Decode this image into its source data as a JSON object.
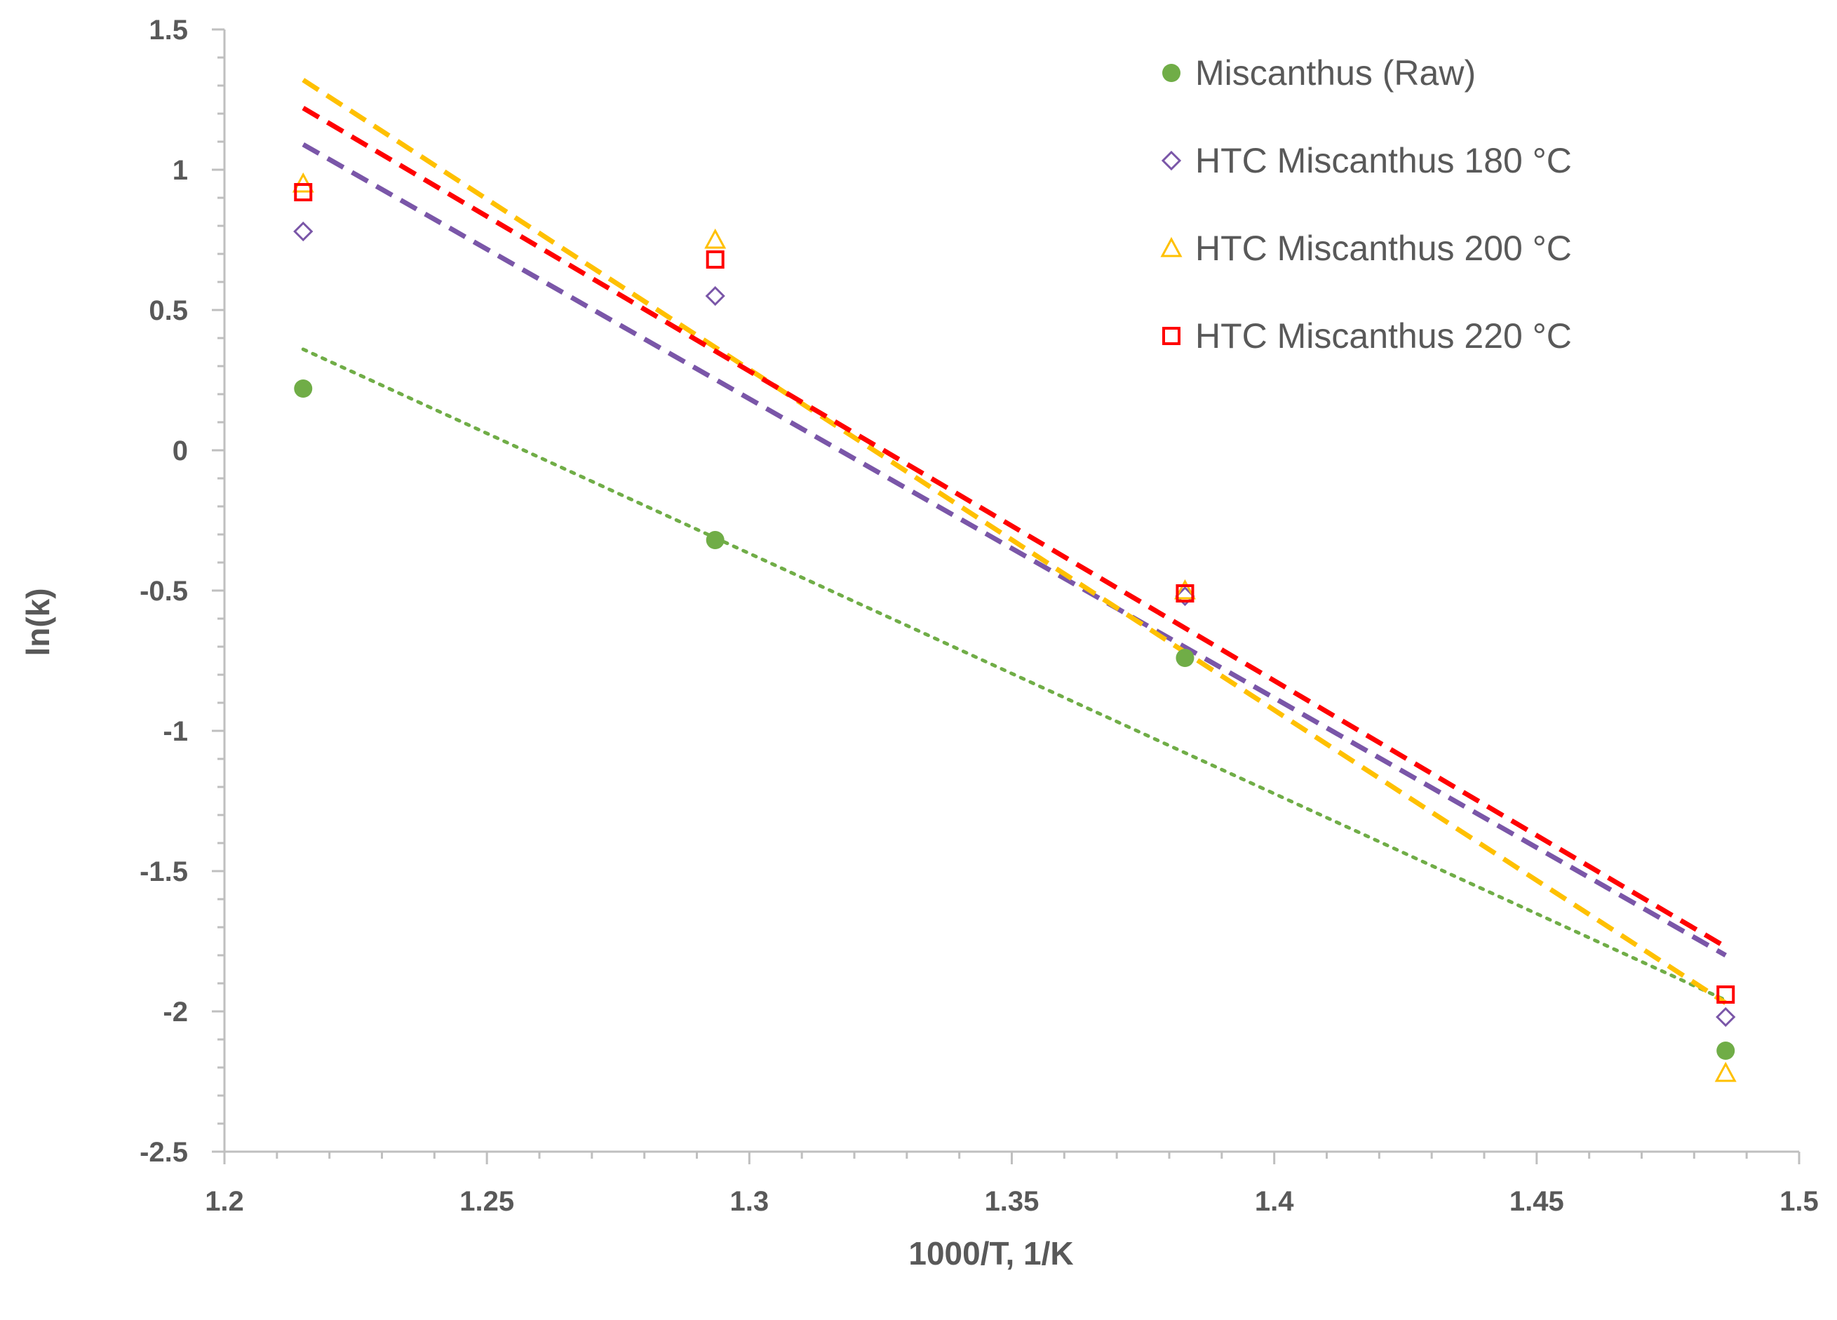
{
  "chart_data": {
    "type": "scatter",
    "title": "",
    "xlabel": "1000/T, 1/K",
    "ylabel": "ln(k)",
    "xlim": [
      1.2,
      1.5
    ],
    "ylim": [
      -2.5,
      1.5
    ],
    "xticks": [
      1.2,
      1.25,
      1.3,
      1.35,
      1.4,
      1.45,
      1.5
    ],
    "xtick_labels": [
      "1.2",
      "1.25",
      "1.3",
      "1.35",
      "1.4",
      "1.45",
      "1.5"
    ],
    "yticks": [
      1.5,
      1,
      0.5,
      0,
      -0.5,
      -1,
      -1.5,
      -2,
      -2.5
    ],
    "ytick_labels": [
      "1.5",
      "1",
      "0.5",
      "0",
      "-0.5",
      "-1",
      "-1.5",
      "-2",
      "-2.5"
    ],
    "grid": false,
    "legend_position": "top-right",
    "x": [
      1.215,
      1.2935,
      1.383,
      1.486
    ],
    "series": [
      {
        "name": "Miscanthus (Raw)",
        "color": "#70ad47",
        "marker": "circle-filled",
        "values": [
          0.22,
          -0.32,
          -0.74,
          -2.14
        ],
        "trendline": {
          "style": "dotted",
          "x_start": 1.215,
          "y_start": 0.36,
          "x_end": 1.486,
          "y_end": -1.96
        }
      },
      {
        "name": "HTC Miscanthus 180 °C",
        "color": "#7a56a8",
        "marker": "diamond-open",
        "values": [
          0.78,
          0.55,
          -0.52,
          -2.02
        ],
        "trendline": {
          "style": "dashed",
          "x_start": 1.215,
          "y_start": 1.09,
          "x_end": 1.486,
          "y_end": -1.8
        }
      },
      {
        "name": "HTC Miscanthus 200 °C",
        "color": "#ffc000",
        "marker": "triangle-open",
        "values": [
          0.95,
          0.75,
          -0.5,
          -2.22
        ],
        "trendline": {
          "style": "dashed",
          "x_start": 1.215,
          "y_start": 1.32,
          "x_end": 1.486,
          "y_end": -1.97
        }
      },
      {
        "name": "HTC Miscanthus 220 °C",
        "color": "#ff0000",
        "marker": "square-open",
        "values": [
          0.92,
          0.68,
          -0.51,
          -1.94
        ],
        "trendline": {
          "style": "dashed",
          "x_start": 1.215,
          "y_start": 1.22,
          "x_end": 1.486,
          "y_end": -1.77
        }
      }
    ]
  }
}
